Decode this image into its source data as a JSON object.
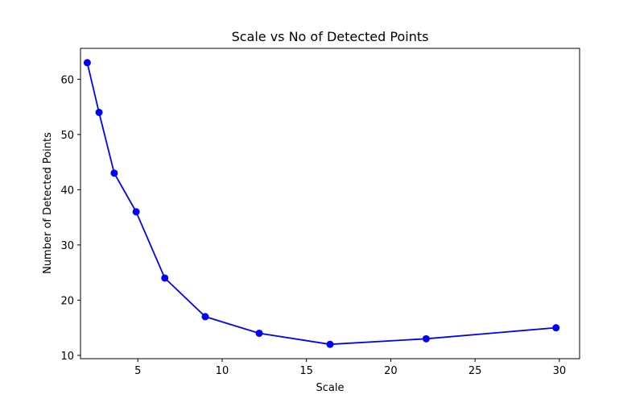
{
  "chart_data": {
    "type": "line",
    "title": "Scale vs No of Detected Points",
    "xlabel": "Scale",
    "ylabel": "Number of Detected Points",
    "xlim": [
      1.6,
      31.2
    ],
    "ylim": [
      9.4,
      65.6
    ],
    "xticks": [
      5,
      10,
      15,
      20,
      25,
      30
    ],
    "yticks": [
      10,
      20,
      30,
      40,
      50,
      60
    ],
    "grid": false,
    "series": [
      {
        "color": "#0000ff",
        "marker": "circle",
        "x": [
          2.0,
          2.7,
          3.6,
          4.9,
          6.6,
          9.0,
          12.2,
          16.4,
          22.1,
          29.8
        ],
        "y": [
          63,
          54,
          43,
          36,
          24,
          17,
          14,
          12,
          13,
          15
        ]
      }
    ]
  }
}
